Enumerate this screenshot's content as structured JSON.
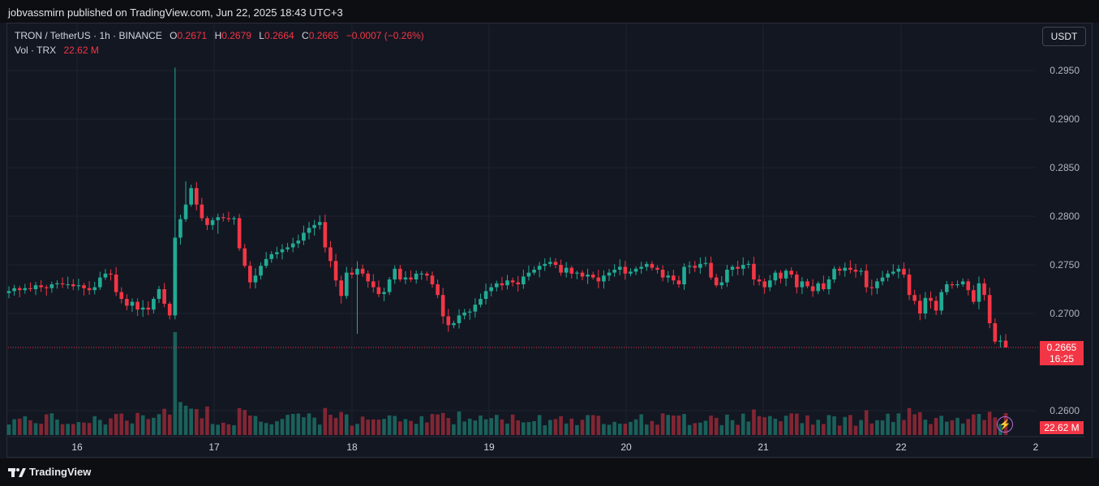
{
  "header": {
    "published": "jobvassmirn published on TradingView.com, Jun 22, 2025 18:43 UTC+3"
  },
  "legend": {
    "symbol": "TRON / TetherUS · 1h · BINANCE",
    "o_label": "O",
    "o_value": "0.2671",
    "h_label": "H",
    "h_value": "0.2679",
    "l_label": "L",
    "l_value": "0.2664",
    "c_label": "C",
    "c_value": "0.2665",
    "change": "−0.0007 (−0.26%)",
    "vol_label": "Vol · TRX",
    "vol_value": "22.62 M"
  },
  "currency_button": "USDT",
  "last_price_tag": {
    "price": "0.2665",
    "countdown": "16:25"
  },
  "volume_tag": "22.62 M",
  "footer": {
    "brand": "TradingView"
  },
  "colors": {
    "up": "#22ab94",
    "down": "#f23645",
    "background": "#131722",
    "grid": "#1f2330"
  },
  "chart_data": {
    "type": "candlestick",
    "title": "TRON / TetherUS · 1h · BINANCE",
    "x_ticks": [
      "16",
      "17",
      "18",
      "19",
      "20",
      "21",
      "22",
      "2"
    ],
    "y_ticks": [
      "0.2950",
      "0.2900",
      "0.2850",
      "0.2800",
      "0.2750",
      "0.2700",
      "0.2600"
    ],
    "ylim": [
      0.258,
      0.297
    ],
    "last_price": 0.2665,
    "grid": true,
    "series_close_approx": [
      0.2723,
      0.2726,
      0.2724,
      0.2726,
      0.2725,
      0.2729,
      0.2727,
      0.2726,
      0.273,
      0.2731,
      0.273,
      0.273,
      0.2728,
      0.2729,
      0.2726,
      0.2724,
      0.2727,
      0.2737,
      0.2741,
      0.274,
      0.2722,
      0.2715,
      0.2708,
      0.2712,
      0.2704,
      0.2706,
      0.2704,
      0.2715,
      0.2725,
      0.271,
      0.2698,
      0.2778,
      0.2797,
      0.2812,
      0.2829,
      0.2812,
      0.2798,
      0.2791,
      0.2796,
      0.2799,
      0.2798,
      0.2797,
      0.2798,
      0.2767,
      0.2749,
      0.2732,
      0.2739,
      0.2749,
      0.2756,
      0.2761,
      0.2763,
      0.2766,
      0.2768,
      0.2772,
      0.2775,
      0.2783,
      0.2788,
      0.2791,
      0.2794,
      0.2768,
      0.2754,
      0.2734,
      0.2718,
      0.2742,
      0.274,
      0.2746,
      0.2741,
      0.2733,
      0.2727,
      0.272,
      0.2722,
      0.2735,
      0.2746,
      0.2735,
      0.2737,
      0.2735,
      0.2741,
      0.2741,
      0.2739,
      0.273,
      0.2719,
      0.2697,
      0.2688,
      0.269,
      0.2698,
      0.2701,
      0.2702,
      0.2709,
      0.2715,
      0.2723,
      0.2727,
      0.2731,
      0.2729,
      0.2734,
      0.2732,
      0.273,
      0.2738,
      0.2742,
      0.2745,
      0.2749,
      0.2751,
      0.2753,
      0.275,
      0.2742,
      0.2747,
      0.2741,
      0.2742,
      0.2738,
      0.274,
      0.2737,
      0.2733,
      0.2739,
      0.2742,
      0.2745,
      0.2748,
      0.2741,
      0.2743,
      0.2746,
      0.2748,
      0.2751,
      0.2747,
      0.2745,
      0.2737,
      0.2739,
      0.2734,
      0.273,
      0.2748,
      0.2749,
      0.2747,
      0.2751,
      0.2752,
      0.2737,
      0.2729,
      0.2732,
      0.2745,
      0.2748,
      0.2746,
      0.275,
      0.2751,
      0.2735,
      0.2733,
      0.2727,
      0.2734,
      0.2742,
      0.2736,
      0.2744,
      0.274,
      0.2727,
      0.2733,
      0.2728,
      0.2723,
      0.2731,
      0.2725,
      0.2735,
      0.2746,
      0.2744,
      0.2747,
      0.2745,
      0.2743,
      0.2744,
      0.2727,
      0.2726,
      0.2733,
      0.2737,
      0.2741,
      0.2743,
      0.2746,
      0.274,
      0.2719,
      0.2713,
      0.27,
      0.2716,
      0.2713,
      0.2703,
      0.2722,
      0.273,
      0.2729,
      0.273,
      0.2733,
      0.2724,
      0.2712,
      0.2731,
      0.2719,
      0.269,
      0.2671,
      0.2672,
      0.2665
    ],
    "volume_series": "hourly volume bars, spike at Jun 16 breakout"
  }
}
